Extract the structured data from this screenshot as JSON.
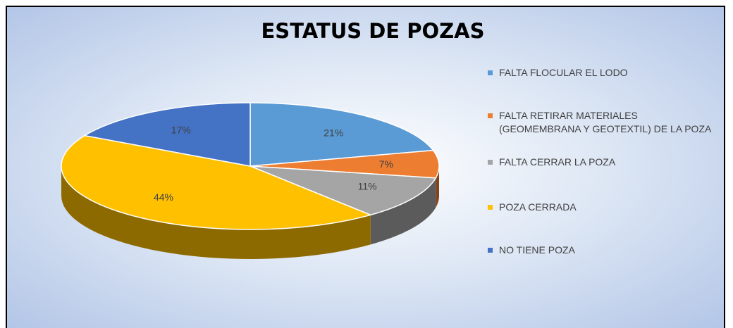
{
  "chart_data": {
    "type": "pie",
    "title": "ESTATUS DE POZAS",
    "categories": [
      "FALTA FLOCULAR EL LODO",
      "FALTA RETIRAR MATERIALES (GEOMEMBRANA Y GEOTEXTIL) DE LA POZA",
      "FALTA CERRAR LA POZA",
      "POZA CERRADA",
      "NO TIENE POZA"
    ],
    "values": [
      21,
      7,
      11,
      44,
      17
    ],
    "value_labels": [
      "21%",
      "7%",
      "11%",
      "44%",
      "17%"
    ],
    "colors": [
      "#5b9bd5",
      "#ed7d31",
      "#a5a5a5",
      "#ffc000",
      "#4472c4"
    ],
    "legend": "right"
  }
}
